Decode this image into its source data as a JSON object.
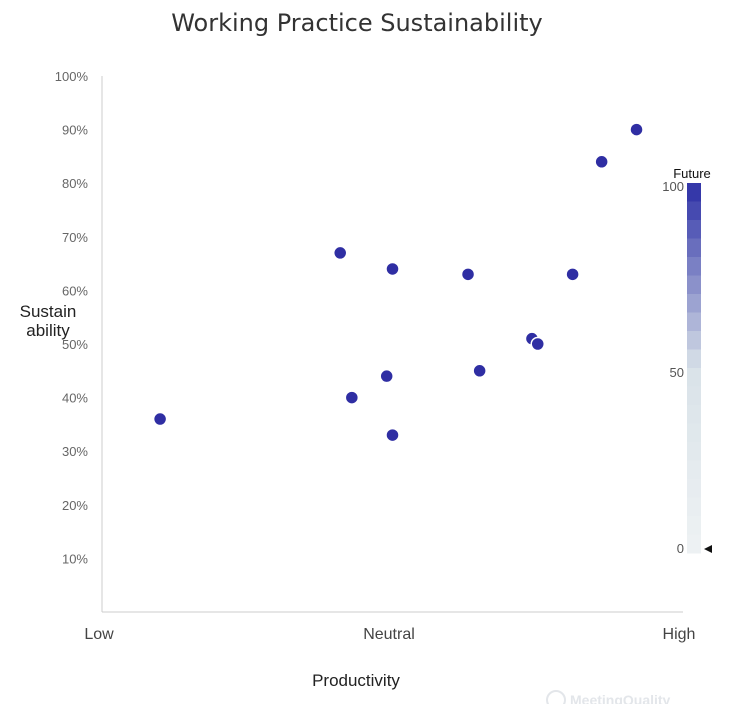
{
  "chart_data": {
    "type": "scatter",
    "title": "Working Practice Sustainability",
    "xlabel": "Productivity",
    "ylabel_lines": [
      "Sustain",
      "ability"
    ],
    "x_categories": [
      "Low",
      "Neutral",
      "High"
    ],
    "xlim": [
      0,
      100
    ],
    "ylim": [
      0,
      100
    ],
    "y_ticks": [
      "10%",
      "20%",
      "30%",
      "40%",
      "50%",
      "60%",
      "70%",
      "80%",
      "90%",
      "100%"
    ],
    "grid": false,
    "legend": {
      "title": "Future",
      "ticks": [
        "100",
        "50",
        "0"
      ],
      "placement": "right",
      "color_low": "#eef2f4",
      "color_mid": "#d9e2e8",
      "color_high": "#2c2fa6"
    },
    "point_color": "#2f2ea3",
    "points": [
      {
        "x": 10,
        "y": 36
      },
      {
        "x": 41,
        "y": 67
      },
      {
        "x": 43,
        "y": 40
      },
      {
        "x": 49,
        "y": 44
      },
      {
        "x": 50,
        "y": 64
      },
      {
        "x": 50,
        "y": 33
      },
      {
        "x": 63,
        "y": 63
      },
      {
        "x": 65,
        "y": 45
      },
      {
        "x": 74,
        "y": 51
      },
      {
        "x": 75,
        "y": 50
      },
      {
        "x": 81,
        "y": 63
      },
      {
        "x": 86,
        "y": 84
      },
      {
        "x": 92,
        "y": 90
      }
    ]
  },
  "watermark": "MeetingQuality"
}
